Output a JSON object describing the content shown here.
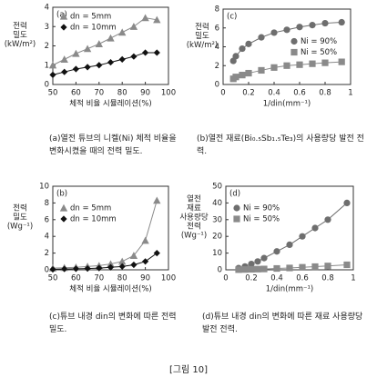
{
  "figure_label": "[그림 10]",
  "chart_data": [
    {
      "type": "line",
      "panel_label": "(a)",
      "caption": "(a)열전 튜브의 니켈(Ni) 체적 비율을 변화시켰을 때의 전력 밀도.",
      "xlabel": "체적 비율 시뮬레이션(%)",
      "ylabel": [
        "전력",
        "밀도",
        "(kW/m²)"
      ],
      "xlim": [
        50,
        100
      ],
      "xticks": [
        50,
        60,
        70,
        80,
        90,
        100
      ],
      "ylim": [
        0,
        4
      ],
      "yticks": [
        0,
        1,
        2,
        3,
        4
      ],
      "legend": "upper left",
      "series": [
        {
          "name": "dn = 5mm",
          "marker": "triangle",
          "color": "#8a8a8a",
          "x": [
            50,
            55,
            60,
            65,
            70,
            75,
            80,
            85,
            90,
            95
          ],
          "values": [
            1.0,
            1.3,
            1.6,
            1.85,
            2.1,
            2.4,
            2.7,
            3.0,
            3.45,
            3.35
          ]
        },
        {
          "name": "dn = 10mm",
          "marker": "diamond",
          "color": "#111111",
          "x": [
            50,
            55,
            60,
            65,
            70,
            75,
            80,
            85,
            90,
            95
          ],
          "values": [
            0.5,
            0.65,
            0.8,
            0.9,
            1.0,
            1.15,
            1.3,
            1.45,
            1.65,
            1.65
          ]
        }
      ]
    },
    {
      "type": "line",
      "panel_label": "(c)",
      "caption": "(b)열전 재료(Bi₀.₅Sb₁.₅Te₃)의 사용량당 발전 전력.",
      "xlabel": "1/din(mm⁻¹)",
      "ylabel": [
        "전력",
        "밀도",
        "(kW/m²)"
      ],
      "xlim": [
        0,
        1
      ],
      "xticks": [
        0,
        0.2,
        0.4,
        0.6,
        0.8,
        1
      ],
      "ylim": [
        0,
        8
      ],
      "yticks": [
        0,
        2,
        4,
        6,
        8
      ],
      "legend": "center right",
      "series": [
        {
          "name": "Ni = 90%",
          "marker": "circle",
          "color": "#6e6e6e",
          "x": [
            0.08,
            0.1,
            0.15,
            0.2,
            0.3,
            0.4,
            0.5,
            0.6,
            0.7,
            0.8,
            0.93
          ],
          "values": [
            2.5,
            3.0,
            3.8,
            4.3,
            5.0,
            5.5,
            5.8,
            6.1,
            6.3,
            6.5,
            6.6
          ]
        },
        {
          "name": "Ni = 50%",
          "marker": "square",
          "color": "#8a8a8a",
          "x": [
            0.08,
            0.1,
            0.15,
            0.2,
            0.3,
            0.4,
            0.5,
            0.6,
            0.7,
            0.8,
            0.93
          ],
          "values": [
            0.6,
            0.8,
            1.0,
            1.2,
            1.5,
            1.8,
            2.0,
            2.1,
            2.2,
            2.3,
            2.4
          ]
        }
      ]
    },
    {
      "type": "line",
      "panel_label": "(b)",
      "caption": "(c)튜브 내경 din의 변화에 따른 전력 밀도.",
      "xlabel": "체적 비율 시뮬레이션(%)",
      "ylabel": [
        "전력",
        "밀도",
        "(Wg⁻¹)"
      ],
      "xlim": [
        50,
        100
      ],
      "xticks": [
        50,
        60,
        70,
        80,
        90,
        100
      ],
      "ylim": [
        0,
        10
      ],
      "yticks": [
        0,
        2,
        4,
        6,
        8,
        10
      ],
      "legend": "upper left",
      "series": [
        {
          "name": "dn = 5mm",
          "marker": "triangle",
          "color": "#8a8a8a",
          "x": [
            50,
            55,
            60,
            65,
            70,
            75,
            80,
            85,
            90,
            95
          ],
          "values": [
            0.2,
            0.25,
            0.3,
            0.4,
            0.5,
            0.7,
            1.0,
            1.7,
            3.5,
            8.3
          ]
        },
        {
          "name": "dn = 10mm",
          "marker": "diamond",
          "color": "#111111",
          "x": [
            50,
            55,
            60,
            65,
            70,
            75,
            80,
            85,
            90,
            95
          ],
          "values": [
            0.05,
            0.1,
            0.12,
            0.15,
            0.2,
            0.3,
            0.4,
            0.6,
            1.0,
            2.0
          ]
        }
      ]
    },
    {
      "type": "line",
      "panel_label": "(d)",
      "caption": "(d)튜브 내경 din의 변화에 따른 재료 사용량당 발전 전력.",
      "xlabel": "1/din(mm⁻¹)",
      "ylabel": [
        "열전",
        "재료",
        "사용량당",
        "전력",
        "(Wg⁻¹)"
      ],
      "xlim": [
        0,
        1
      ],
      "xticks": [
        0,
        0.2,
        0.4,
        0.6,
        0.8,
        1
      ],
      "ylim": [
        0,
        50
      ],
      "yticks": [
        0,
        10,
        20,
        30,
        40,
        50
      ],
      "legend": "upper left",
      "series": [
        {
          "name": "Ni = 90%",
          "marker": "circle",
          "color": "#6e6e6e",
          "x": [
            0.1,
            0.15,
            0.2,
            0.25,
            0.3,
            0.4,
            0.5,
            0.6,
            0.7,
            0.8,
            0.95
          ],
          "values": [
            1,
            2,
            3.5,
            5,
            7,
            11,
            15,
            20,
            25,
            30,
            40
          ]
        },
        {
          "name": "Ni = 50%",
          "marker": "square",
          "color": "#8a8a8a",
          "x": [
            0.1,
            0.15,
            0.2,
            0.25,
            0.3,
            0.4,
            0.5,
            0.6,
            0.7,
            0.8,
            0.95
          ],
          "values": [
            0.1,
            0.2,
            0.3,
            0.4,
            0.5,
            0.8,
            1.1,
            1.5,
            1.9,
            2.3,
            3
          ]
        }
      ]
    }
  ]
}
